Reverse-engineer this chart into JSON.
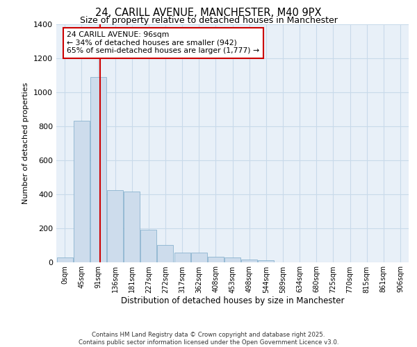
{
  "title1": "24, CARILL AVENUE, MANCHESTER, M40 9PX",
  "title2": "Size of property relative to detached houses in Manchester",
  "xlabel": "Distribution of detached houses by size in Manchester",
  "ylabel": "Number of detached properties",
  "bar_labels": [
    "0sqm",
    "45sqm",
    "91sqm",
    "136sqm",
    "181sqm",
    "227sqm",
    "272sqm",
    "317sqm",
    "362sqm",
    "408sqm",
    "453sqm",
    "498sqm",
    "544sqm",
    "589sqm",
    "634sqm",
    "680sqm",
    "725sqm",
    "770sqm",
    "815sqm",
    "861sqm",
    "906sqm"
  ],
  "bar_values": [
    25,
    830,
    1090,
    425,
    415,
    190,
    100,
    55,
    55,
    30,
    25,
    15,
    10,
    0,
    0,
    0,
    0,
    0,
    0,
    0,
    0
  ],
  "bar_color": "#cddcec",
  "bar_edge_color": "#7aaac8",
  "grid_color": "#c8daea",
  "bg_color": "#e8f0f8",
  "vline_color": "#cc0000",
  "annotation_text": "24 CARILL AVENUE: 96sqm\n← 34% of detached houses are smaller (942)\n65% of semi-detached houses are larger (1,777) →",
  "annotation_box_color": "#ffffff",
  "annotation_box_edge": "#cc0000",
  "footer_text": "Contains HM Land Registry data © Crown copyright and database right 2025.\nContains public sector information licensed under the Open Government Licence v3.0.",
  "ylim": [
    0,
    1400
  ],
  "yticks": [
    0,
    200,
    400,
    600,
    800,
    1000,
    1200,
    1400
  ]
}
